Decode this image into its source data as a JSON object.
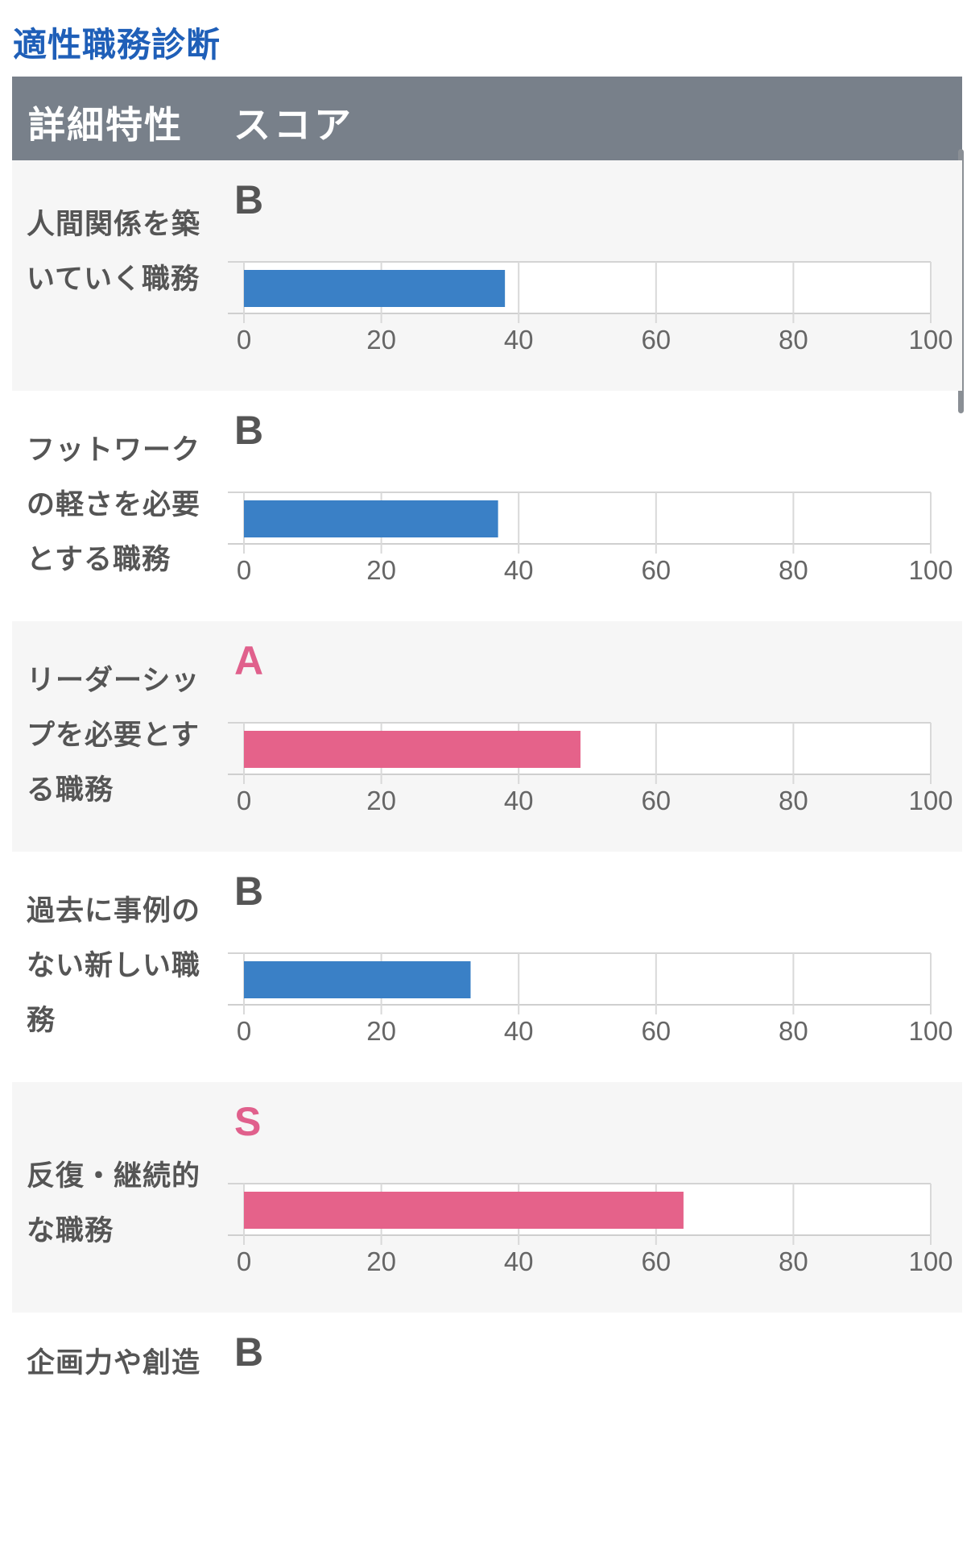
{
  "page_title": "適性職務診断",
  "table_header": {
    "col1": "詳細特性",
    "col2": "スコア"
  },
  "colors": {
    "blue_bar": "#3a80c6",
    "pink_bar": "#e5628a",
    "grade_gray": "#555555",
    "grade_pink": "#e0608c"
  },
  "chart_data": [
    {
      "type": "bar",
      "orientation": "horizontal",
      "category": "人間関係を築いていく職務",
      "label_lines": [
        "人間関係を築",
        "いていく職務"
      ],
      "grade": "B",
      "value": 38,
      "xlim": [
        0,
        100
      ],
      "ticks": [
        "0",
        "20",
        "40",
        "60",
        "80",
        "100"
      ],
      "bar_color": "blue"
    },
    {
      "type": "bar",
      "orientation": "horizontal",
      "category": "フットワークの軽さを必要とする職務",
      "label_lines": [
        "フットワーク",
        "の軽さを必要",
        "とする職務"
      ],
      "grade": "B",
      "value": 37,
      "xlim": [
        0,
        100
      ],
      "ticks": [
        "0",
        "20",
        "40",
        "60",
        "80",
        "100"
      ],
      "bar_color": "blue"
    },
    {
      "type": "bar",
      "orientation": "horizontal",
      "category": "リーダーシップを必要とする職務",
      "label_lines": [
        "リーダーシッ",
        "プを必要とす",
        "る職務"
      ],
      "grade": "A",
      "value": 49,
      "xlim": [
        0,
        100
      ],
      "ticks": [
        "0",
        "20",
        "40",
        "60",
        "80",
        "100"
      ],
      "bar_color": "pink"
    },
    {
      "type": "bar",
      "orientation": "horizontal",
      "category": "過去に事例のない新しい職務",
      "label_lines": [
        "過去に事例の",
        "ない新しい職",
        "務"
      ],
      "grade": "B",
      "value": 33,
      "xlim": [
        0,
        100
      ],
      "ticks": [
        "0",
        "20",
        "40",
        "60",
        "80",
        "100"
      ],
      "bar_color": "blue"
    },
    {
      "type": "bar",
      "orientation": "horizontal",
      "category": "反復・継続的な職務",
      "label_lines": [
        "反復・継続的",
        "な職務"
      ],
      "grade": "S",
      "value": 64,
      "xlim": [
        0,
        100
      ],
      "ticks": [
        "0",
        "20",
        "40",
        "60",
        "80",
        "100"
      ],
      "bar_color": "pink"
    },
    {
      "type": "bar",
      "orientation": "horizontal",
      "category": "企画力や創造",
      "label_lines": [
        "企画力や創造"
      ],
      "grade": "B",
      "value": null,
      "xlim": [
        0,
        100
      ],
      "ticks": [],
      "bar_color": "blue"
    }
  ]
}
